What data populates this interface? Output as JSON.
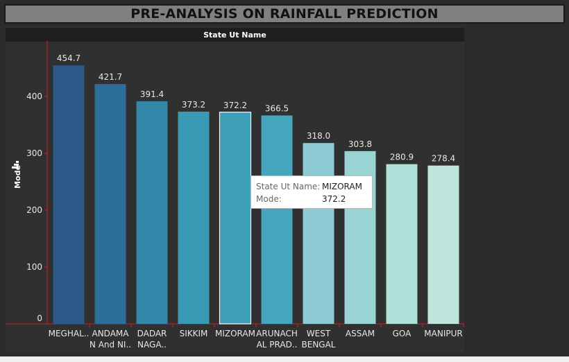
{
  "title": "PRE-ANALYSIS ON RAINFALL PREDICTION",
  "header": "State Ut Name",
  "chart_data": {
    "type": "bar",
    "ylabel": "Mode",
    "ylim": [
      0,
      480
    ],
    "yticks": [
      0,
      100,
      200,
      300,
      400
    ],
    "categories": [
      [
        "MEGHAL.."
      ],
      [
        "ANDAMA",
        "N And NI.."
      ],
      [
        "DADAR",
        "NAGA.."
      ],
      [
        "SIKKIM"
      ],
      [
        "MIZORAM"
      ],
      [
        "ARUNACH",
        "AL PRAD.."
      ],
      [
        "WEST",
        "BENGAL"
      ],
      [
        "ASSAM"
      ],
      [
        "GOA"
      ],
      [
        "MANIPUR"
      ]
    ],
    "values": [
      454.7,
      421.7,
      391.4,
      373.2,
      372.2,
      366.5,
      318.0,
      303.8,
      280.9,
      278.4
    ],
    "value_labels": [
      "454.7",
      "421.7",
      "391.4",
      "373.2",
      "372.2",
      "366.5",
      "318.0",
      "303.8",
      "280.9",
      "278.4"
    ],
    "colors": [
      "#2c5a88",
      "#2e6f99",
      "#3388aa",
      "#3a99b4",
      "#3d9eb7",
      "#45a5bd",
      "#8ccad4",
      "#9ad3d3",
      "#aedfd8",
      "#bde5db"
    ],
    "highlighted_index": 4,
    "grid": false
  },
  "tooltip": {
    "k1": "State Ut Name:",
    "v1": "MIZORAM",
    "k2": "Mode:",
    "v2": "372.2"
  },
  "colors": {
    "background": "#2b2b2b",
    "panel": "#303030",
    "axis": "#cc2222",
    "text": "#e8e8e8"
  }
}
